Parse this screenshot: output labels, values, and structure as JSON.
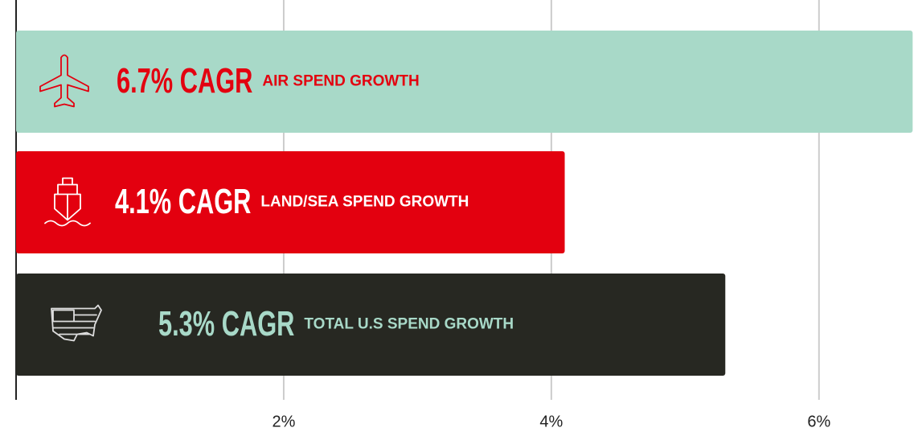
{
  "chart_data": {
    "type": "barh",
    "categories": [
      "AIR SPEND GROWTH",
      "LAND/SEA SPEND GROWTH",
      "TOTAL U.S SPEND GROWTH"
    ],
    "values": [
      6.7,
      4.1,
      5.3
    ],
    "value_labels": [
      "6.7% CAGR",
      "4.1% CAGR",
      "5.3% CAGR"
    ],
    "colors": [
      "#a8d9c8",
      "#e3000f",
      "#272822"
    ],
    "label_colors": [
      "#e3000f",
      "#ffffff",
      "#a8d9c8"
    ],
    "xlim": [
      0,
      6.74
    ],
    "xticks": [
      {
        "value": 2,
        "label": "2%"
      },
      {
        "value": 4,
        "label": "4%"
      },
      {
        "value": 6,
        "label": "6%"
      }
    ],
    "grid": true
  }
}
